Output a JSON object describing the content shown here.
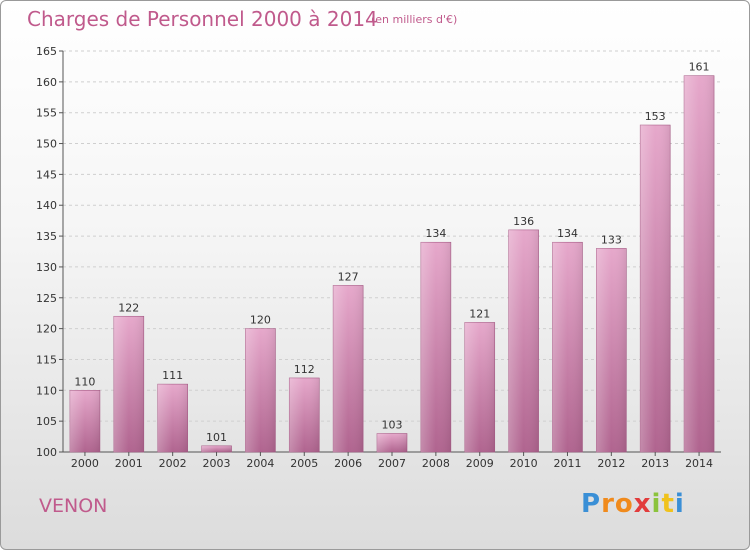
{
  "chart_data": {
    "type": "bar",
    "title": "Charges de Personnel 2000 à 2014",
    "subtitle": "(en milliers d'€)",
    "categories": [
      "2000",
      "2001",
      "2002",
      "2003",
      "2004",
      "2005",
      "2006",
      "2007",
      "2008",
      "2009",
      "2010",
      "2011",
      "2012",
      "2013",
      "2014"
    ],
    "values": [
      110,
      122,
      111,
      101,
      120,
      112,
      127,
      103,
      134,
      121,
      136,
      134,
      133,
      153,
      161
    ],
    "ylim": [
      100,
      165
    ],
    "yticks": [
      100,
      105,
      110,
      115,
      120,
      125,
      130,
      135,
      140,
      145,
      150,
      155,
      160,
      165
    ],
    "grid": true,
    "bar_color": "#d98bb5"
  },
  "footer": {
    "place": "VENON",
    "logo_letters": [
      "P",
      "r",
      "o",
      "x",
      "i",
      "t",
      "i"
    ],
    "logo_colors": [
      "#3a8fd6",
      "#f08a1c",
      "#f08a1c",
      "#e23c3c",
      "#8bc33c",
      "#f0c21c",
      "#3a8fd6"
    ]
  }
}
